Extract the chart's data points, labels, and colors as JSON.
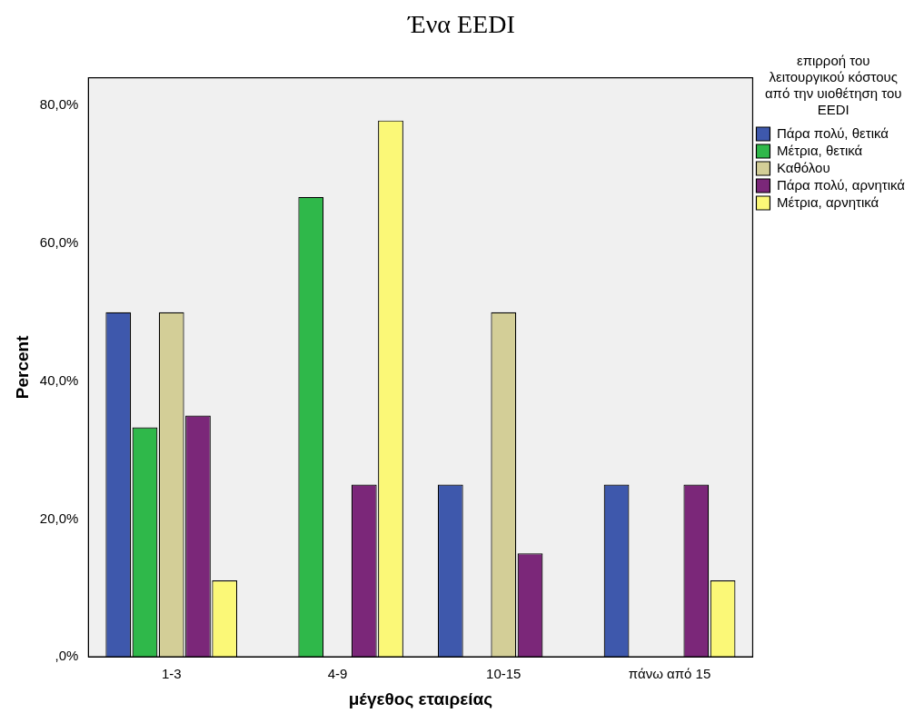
{
  "chart_data": {
    "type": "bar",
    "title": "Ένα EEDI",
    "xlabel": "μέγεθος εταιρείας",
    "ylabel": "Percent",
    "legend_title": "επιρροή του λειτουργικού κόστους από την υιοθέτηση του EEDI",
    "categories": [
      "1-3",
      "4-9",
      "10-15",
      "πάνω από 15"
    ],
    "series": [
      {
        "name": "Πάρα πολύ, θετικά",
        "color": "#3e58ac",
        "values": [
          50,
          null,
          25,
          25
        ]
      },
      {
        "name": "Μέτρια, θετικά",
        "color": "#2fb84a",
        "values": [
          33.3,
          66.7,
          null,
          null
        ]
      },
      {
        "name": "Καθόλου",
        "color": "#d3ce97",
        "values": [
          50,
          null,
          50,
          null
        ]
      },
      {
        "name": "Πάρα πολύ, αρνητικά",
        "color": "#7b2779",
        "values": [
          35,
          25,
          15,
          25
        ]
      },
      {
        "name": "Μέτρια, αρνητικά",
        "color": "#fbf877",
        "values": [
          11.1,
          77.8,
          null,
          11.1
        ]
      }
    ],
    "ylim": [
      0,
      84
    ],
    "yticks": [
      {
        "value": 0,
        "label": ",0%"
      },
      {
        "value": 20,
        "label": "20,0%"
      },
      {
        "value": 40,
        "label": "40,0%"
      },
      {
        "value": 60,
        "label": "60,0%"
      },
      {
        "value": 80,
        "label": "80,0%"
      }
    ],
    "grid": false,
    "legend": "right"
  }
}
